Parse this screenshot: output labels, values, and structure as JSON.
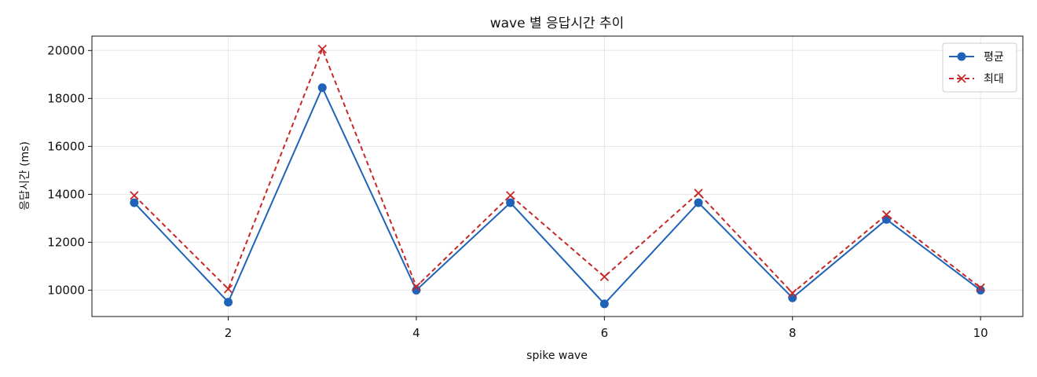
{
  "chart_data": {
    "type": "line",
    "title": "wave 별 응답시간 추이",
    "xlabel": "spike wave",
    "ylabel": "응답시간 (ms)",
    "x": [
      1,
      2,
      3,
      4,
      5,
      6,
      7,
      8,
      9,
      10
    ],
    "xticks": [
      2,
      4,
      6,
      8,
      10
    ],
    "yticks": [
      10000,
      12000,
      14000,
      16000,
      18000,
      20000
    ],
    "xlim": [
      0.55,
      10.45
    ],
    "ylim": [
      8900,
      20600
    ],
    "grid": true,
    "legend_position": "top-right",
    "series": [
      {
        "name": "평균",
        "values": [
          13650,
          9500,
          18450,
          10000,
          13650,
          9430,
          13650,
          9680,
          12950,
          10000
        ],
        "color": "#1f63b8",
        "line_style": "solid",
        "marker": "circle"
      },
      {
        "name": "최대",
        "values": [
          13950,
          10050,
          20060,
          10150,
          13950,
          10560,
          14050,
          9880,
          13150,
          10100
        ],
        "color": "#c62828",
        "line_style": "dashed",
        "marker": "x"
      }
    ]
  }
}
